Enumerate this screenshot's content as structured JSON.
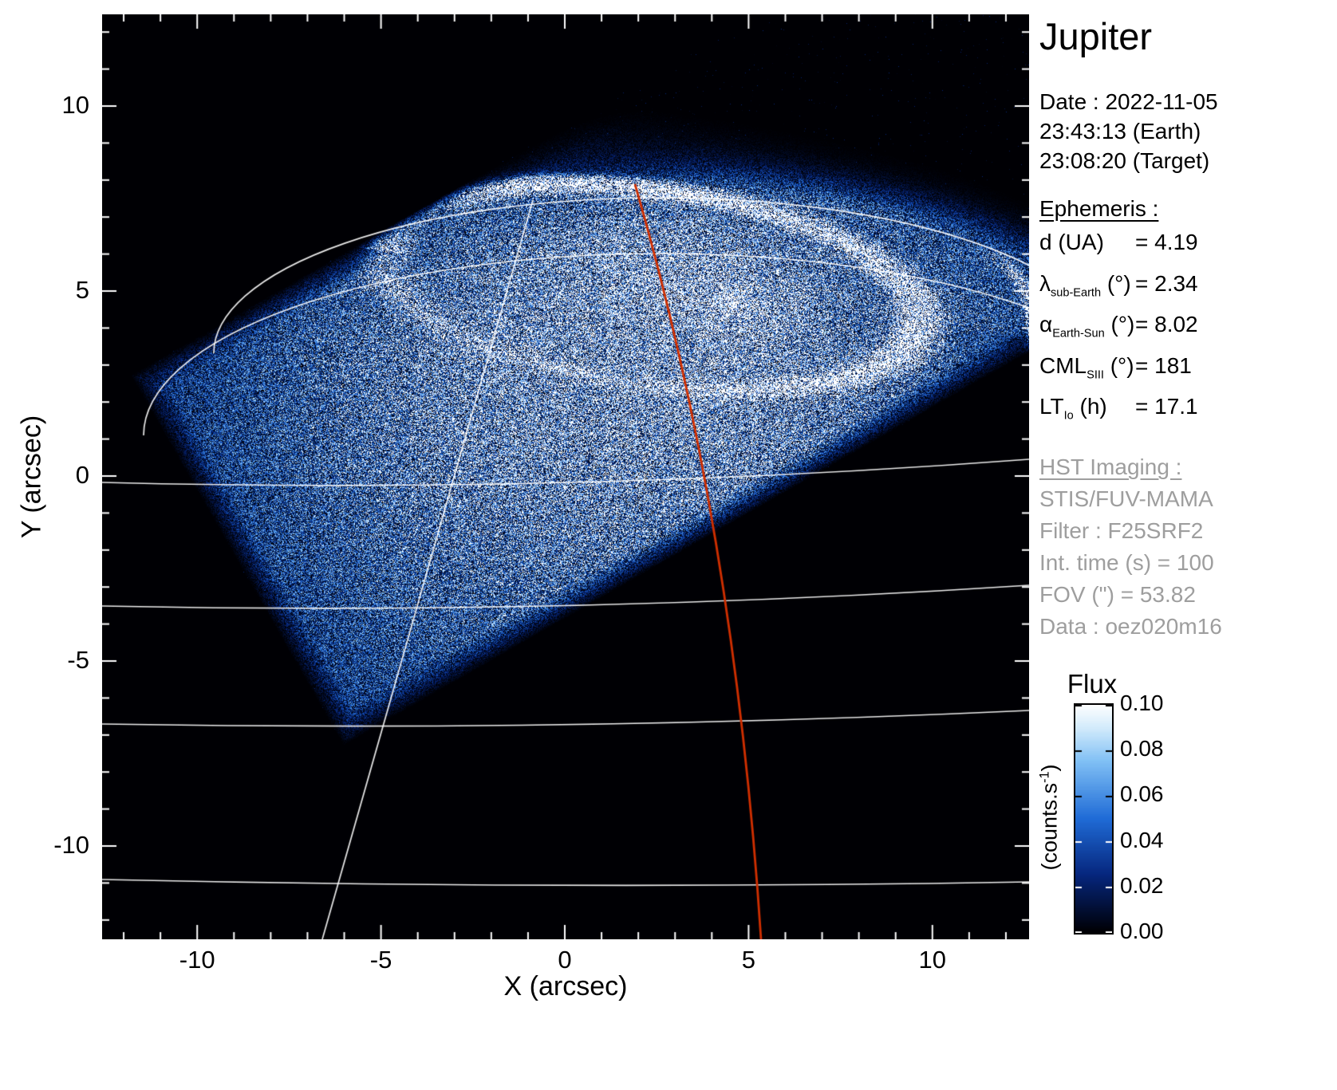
{
  "title": "Jupiter",
  "panel": {
    "date": "Date : 2022-11-05",
    "time_earth": "23:43:13 (Earth)",
    "time_target": "23:08:20 (Target)",
    "ephemeris_heading": "Ephemeris :",
    "ephemeris": [
      {
        "pre": "d",
        "sub": "",
        "post": " (UA)",
        "value": "= 4.19"
      },
      {
        "pre": "λ",
        "sub": "sub-Earth",
        "post": " (°)",
        "value": "= 2.34"
      },
      {
        "pre": "α",
        "sub": "Earth-Sun",
        "post": " (°)",
        "value": "= 8.02"
      },
      {
        "pre": "CML",
        "sub": "SIII",
        "post": " (°)",
        "value": "= 181"
      },
      {
        "pre": "LT",
        "sub": "Io",
        "post": " (h)",
        "value": "= 17.1"
      }
    ],
    "hst_heading": "HST Imaging :",
    "hst_lines": [
      "STIS/FUV-MAMA",
      "Filter : F25SRF2",
      "Int. time (s) = 100",
      "FOV (\") = 53.82",
      "Data : oez020m16"
    ]
  },
  "colorbar": {
    "title": "Flux",
    "unit_pre": "(counts.s",
    "unit_sup": "-1",
    "unit_post": ")",
    "ticks": [
      "0.10",
      "0.08",
      "0.06",
      "0.04",
      "0.02",
      "0.00"
    ]
  },
  "chart_data": {
    "type": "heatmap",
    "title": "Jupiter — HST STIS FUV image of the northern aurora",
    "xlabel": "X (arcsec)",
    "ylabel": "Y (arcsec)",
    "xlim": [
      -12.6,
      12.6
    ],
    "ylim": [
      -12.5,
      12.5
    ],
    "x_ticks": [
      -10,
      -5,
      0,
      5,
      10
    ],
    "y_ticks": [
      -10,
      -5,
      0,
      5,
      10
    ],
    "colormap": "black → dark blue → light blue → white",
    "flux_range_counts_per_s": [
      0.0,
      0.1
    ],
    "colorbar_ticks": [
      0.0,
      0.02,
      0.04,
      0.06,
      0.08,
      0.1
    ],
    "overlays": [
      "white planetocentric graticule (latitude arcs and meridian)",
      "red CML meridian line"
    ],
    "features": {
      "auroral_oval_center_arcsec": [
        2.3,
        5.1
      ],
      "auroral_oval_semi_axes_arcsec": [
        7.4,
        2.6
      ],
      "bright_regions": "main auroral oval brightest along top and right arcs, compact bright spot near (4.3, 4.7), secondary thin arc near (11, 4)",
      "detector_fov": "rotated-square STIS field of view; lower-left corner visible with vertices near (-10.2, 3.1) and (-4.4, -6.9); black sky outside",
      "red_meridian_x_at_bottom_arcsec": 5.3,
      "description": "Noisy blue FUV counts image: bright auroral oval over diffuse dayside disk emission inside the detector field of view"
    }
  }
}
